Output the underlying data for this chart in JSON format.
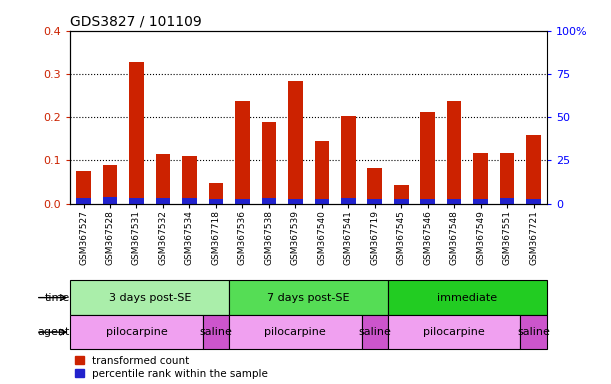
{
  "title": "GDS3827 / 101109",
  "samples": [
    "GSM367527",
    "GSM367528",
    "GSM367531",
    "GSM367532",
    "GSM367534",
    "GSM367718",
    "GSM367536",
    "GSM367538",
    "GSM367539",
    "GSM367540",
    "GSM367541",
    "GSM367719",
    "GSM367545",
    "GSM367546",
    "GSM367548",
    "GSM367549",
    "GSM367551",
    "GSM367721"
  ],
  "red_values": [
    0.075,
    0.09,
    0.328,
    0.115,
    0.11,
    0.048,
    0.238,
    0.188,
    0.283,
    0.145,
    0.202,
    0.082,
    0.042,
    0.213,
    0.238,
    0.118,
    0.117,
    0.158
  ],
  "blue_values": [
    0.012,
    0.016,
    0.013,
    0.012,
    0.012,
    0.01,
    0.01,
    0.012,
    0.011,
    0.011,
    0.013,
    0.01,
    0.01,
    0.011,
    0.011,
    0.011,
    0.012,
    0.011
  ],
  "time_groups": [
    {
      "label": "3 days post-SE",
      "start": 0,
      "end": 6,
      "color": "#aaeeaa"
    },
    {
      "label": "7 days post-SE",
      "start": 6,
      "end": 12,
      "color": "#55dd55"
    },
    {
      "label": "immediate",
      "start": 12,
      "end": 18,
      "color": "#22cc22"
    }
  ],
  "agent_groups": [
    {
      "label": "pilocarpine",
      "start": 0,
      "end": 5,
      "color": "#f0a0f0"
    },
    {
      "label": "saline",
      "start": 5,
      "end": 6,
      "color": "#cc55cc"
    },
    {
      "label": "pilocarpine",
      "start": 6,
      "end": 11,
      "color": "#f0a0f0"
    },
    {
      "label": "saline",
      "start": 11,
      "end": 12,
      "color": "#cc55cc"
    },
    {
      "label": "pilocarpine",
      "start": 12,
      "end": 17,
      "color": "#f0a0f0"
    },
    {
      "label": "saline",
      "start": 17,
      "end": 18,
      "color": "#cc55cc"
    }
  ],
  "ylim_left": [
    0,
    0.4
  ],
  "ylim_right": [
    0,
    100
  ],
  "yticks_left": [
    0,
    0.1,
    0.2,
    0.3,
    0.4
  ],
  "yticks_right": [
    0,
    25,
    50,
    75,
    100
  ],
  "red_color": "#cc2200",
  "blue_color": "#2222cc",
  "bar_width": 0.55,
  "time_label": "time",
  "agent_label": "agent"
}
